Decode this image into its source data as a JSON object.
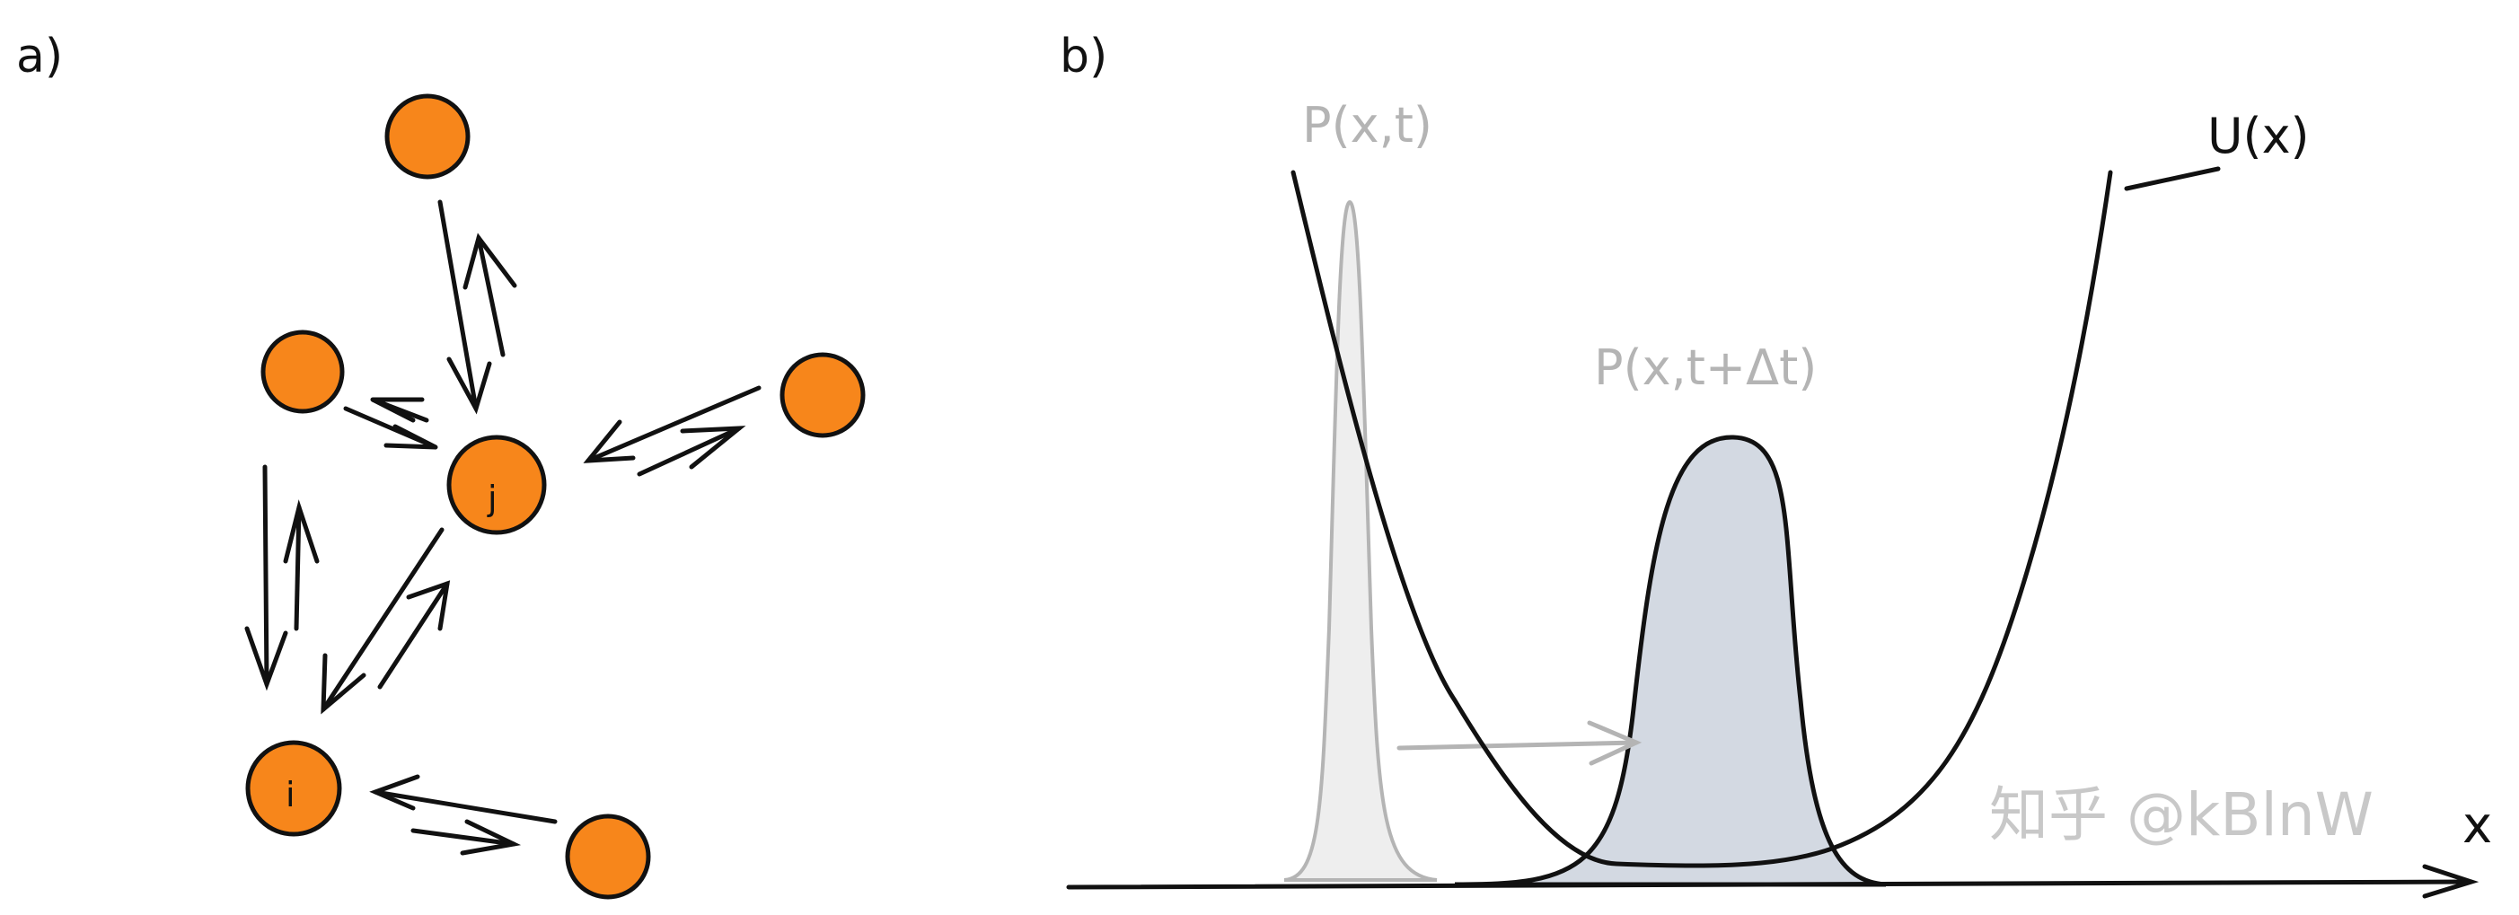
{
  "panel_a": {
    "label": "a)",
    "labeled_particles": {
      "j": "j",
      "i": "i"
    }
  },
  "panel_b": {
    "label": "b)",
    "p_initial_label": "P(x,t)",
    "p_later_label": "P(x,t+Δt)",
    "potential_label": "U(x)",
    "x_axis_label": "x"
  },
  "watermark": "知乎 @kBlnW",
  "colors": {
    "particle_fill": "#f7861b",
    "ink": "#111111",
    "faded_ink": "#b4b4b4",
    "initial_distribution_fill": "#eeeeee",
    "later_distribution_fill": "#d3d9e2"
  }
}
